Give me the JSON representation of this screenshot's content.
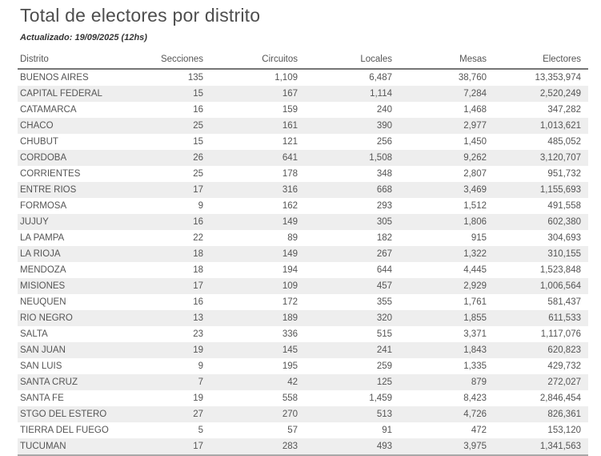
{
  "title": "Total de electores por distrito",
  "subtitle": "Actualizado: 19/09/2025 (12hs)",
  "chart_data": {
    "type": "table",
    "title": "Total de electores por distrito",
    "updated": "19/09/2025 (12hs)",
    "columns": [
      "Distrito",
      "Secciones",
      "Circuitos",
      "Locales",
      "Mesas",
      "Electores"
    ],
    "rows": [
      [
        "BUENOS AIRES",
        "135",
        "1,109",
        "6,487",
        "38,760",
        "13,353,974"
      ],
      [
        "CAPITAL FEDERAL",
        "15",
        "167",
        "1,114",
        "7,284",
        "2,520,249"
      ],
      [
        "CATAMARCA",
        "16",
        "159",
        "240",
        "1,468",
        "347,282"
      ],
      [
        "CHACO",
        "25",
        "161",
        "390",
        "2,977",
        "1,013,621"
      ],
      [
        "CHUBUT",
        "15",
        "121",
        "256",
        "1,450",
        "485,052"
      ],
      [
        "CORDOBA",
        "26",
        "641",
        "1,508",
        "9,262",
        "3,120,707"
      ],
      [
        "CORRIENTES",
        "25",
        "178",
        "348",
        "2,807",
        "951,732"
      ],
      [
        "ENTRE RIOS",
        "17",
        "316",
        "668",
        "3,469",
        "1,155,693"
      ],
      [
        "FORMOSA",
        "9",
        "162",
        "293",
        "1,512",
        "491,558"
      ],
      [
        "JUJUY",
        "16",
        "149",
        "305",
        "1,806",
        "602,380"
      ],
      [
        "LA PAMPA",
        "22",
        "89",
        "182",
        "915",
        "304,693"
      ],
      [
        "LA RIOJA",
        "18",
        "149",
        "267",
        "1,322",
        "310,155"
      ],
      [
        "MENDOZA",
        "18",
        "194",
        "644",
        "4,445",
        "1,523,848"
      ],
      [
        "MISIONES",
        "17",
        "109",
        "457",
        "2,929",
        "1,006,564"
      ],
      [
        "NEUQUEN",
        "16",
        "172",
        "355",
        "1,761",
        "581,437"
      ],
      [
        "RIO NEGRO",
        "13",
        "189",
        "320",
        "1,855",
        "611,533"
      ],
      [
        "SALTA",
        "23",
        "336",
        "515",
        "3,371",
        "1,117,076"
      ],
      [
        "SAN JUAN",
        "19",
        "145",
        "241",
        "1,843",
        "620,823"
      ],
      [
        "SAN LUIS",
        "9",
        "195",
        "259",
        "1,335",
        "429,732"
      ],
      [
        "SANTA CRUZ",
        "7",
        "42",
        "125",
        "879",
        "272,027"
      ],
      [
        "SANTA FE",
        "19",
        "558",
        "1,459",
        "8,423",
        "2,846,454"
      ],
      [
        "STGO DEL ESTERO",
        "27",
        "270",
        "513",
        "4,726",
        "826,361"
      ],
      [
        "TIERRA DEL FUEGO",
        "5",
        "57",
        "91",
        "472",
        "153,120"
      ],
      [
        "TUCUMAN",
        "17",
        "283",
        "493",
        "3,975",
        "1,341,563"
      ]
    ]
  },
  "colors": {
    "background": "#ffffff",
    "stripe": "#eeeeee",
    "text": "#555555",
    "title_text": "#4e4e4e",
    "header_underline": "#757575",
    "table_bottom_line": "#a8a8a8"
  }
}
